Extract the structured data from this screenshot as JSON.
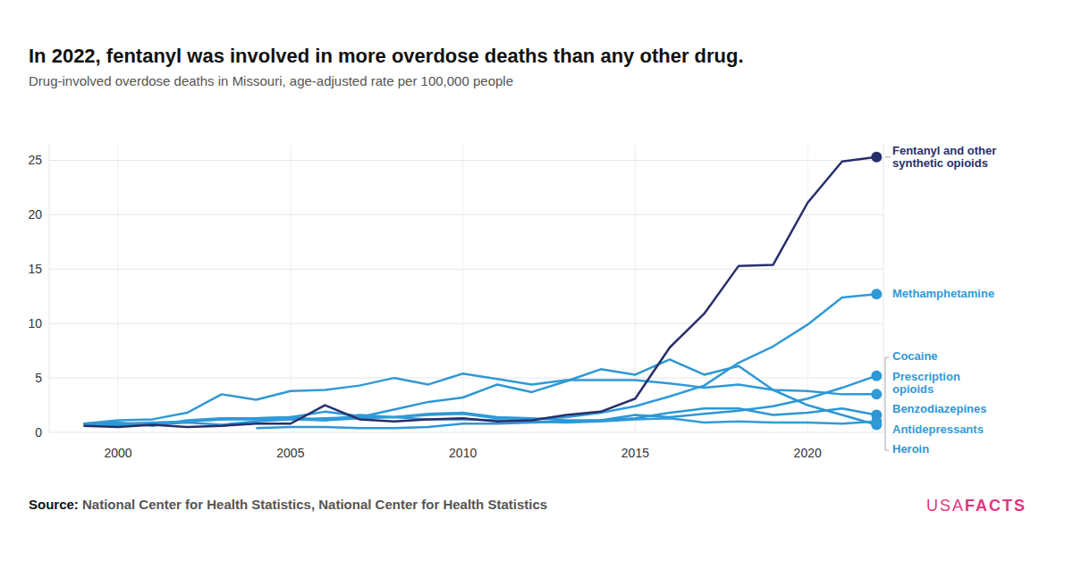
{
  "chart_data": {
    "type": "line",
    "title": "In 2022, fentanyl was involved in more overdose deaths than any other drug.",
    "subtitle": "Drug-involved overdose deaths in Missouri, age-adjusted rate per 100,000 people",
    "source_label": "Source:",
    "source": "National Center for Health Statistics, National Center for Health Statistics",
    "brand_prefix": "USA",
    "brand_suffix": "FACTS",
    "x": [
      1999,
      2000,
      2001,
      2002,
      2003,
      2004,
      2005,
      2006,
      2007,
      2008,
      2009,
      2010,
      2011,
      2012,
      2013,
      2014,
      2015,
      2016,
      2017,
      2018,
      2019,
      2020,
      2021,
      2022
    ],
    "xlim": [
      1998,
      2022.2
    ],
    "xticks": [
      2000,
      2005,
      2010,
      2015,
      2020
    ],
    "ylim": [
      0,
      26.6
    ],
    "yticks": [
      0,
      5,
      10,
      15,
      20,
      25
    ],
    "grid": true,
    "series": [
      {
        "name": "Fentanyl and other synthetic opioids",
        "color": "#272f6b",
        "marker": "end-dot",
        "values": [
          0.6,
          0.5,
          0.7,
          0.5,
          0.6,
          0.8,
          0.8,
          2.5,
          1.2,
          1.0,
          1.2,
          1.3,
          1.0,
          1.1,
          1.6,
          1.9,
          3.1,
          7.8,
          10.9,
          15.3,
          15.4,
          21.1,
          24.9,
          25.3
        ]
      },
      {
        "name": "Methamphetamine",
        "color": "#2f9ad8",
        "marker": "end-dot",
        "values": [
          0.6,
          0.7,
          0.8,
          1.0,
          1.2,
          1.3,
          1.4,
          1.1,
          1.3,
          1.4,
          1.6,
          1.7,
          1.3,
          1.2,
          1.4,
          1.8,
          2.4,
          3.3,
          4.3,
          6.4,
          7.9,
          9.9,
          12.4,
          12.7
        ]
      },
      {
        "name": "Cocaine",
        "color": "#2c98d6",
        "marker": "end-dot",
        "values": [
          0.8,
          0.9,
          0.6,
          1.1,
          1.3,
          1.3,
          1.4,
          1.9,
          1.5,
          1.4,
          1.7,
          1.8,
          1.4,
          1.3,
          1.1,
          1.1,
          1.6,
          1.4,
          1.7,
          2.0,
          2.4,
          3.1,
          4.1,
          5.2
        ]
      },
      {
        "name": "Prescription opioids",
        "color": "#3199d6",
        "marker": "end-dot",
        "values": [
          0.8,
          1.1,
          1.2,
          1.8,
          3.5,
          3.0,
          3.8,
          3.9,
          4.3,
          5.0,
          4.4,
          5.4,
          4.9,
          4.4,
          4.8,
          4.8,
          4.8,
          4.5,
          4.1,
          4.4,
          3.9,
          3.8,
          3.5,
          3.5
        ]
      },
      {
        "name": "Benzodiazepines",
        "color": "#2e96d4",
        "marker": "end-dot",
        "values": [
          null,
          null,
          null,
          null,
          null,
          0.4,
          0.5,
          0.5,
          0.4,
          0.4,
          0.5,
          0.8,
          0.8,
          0.9,
          1.0,
          1.1,
          1.3,
          1.8,
          2.2,
          2.2,
          1.6,
          1.8,
          2.2,
          1.6
        ]
      },
      {
        "name": "Antidepressants",
        "color": "#339bd8",
        "marker": "end-dot",
        "values": [
          0.8,
          0.8,
          0.9,
          1.0,
          1.2,
          1.2,
          1.2,
          1.1,
          1.6,
          1.4,
          1.2,
          1.2,
          1.1,
          1.0,
          0.9,
          1.0,
          1.2,
          1.3,
          0.9,
          1.0,
          0.9,
          0.9,
          0.8,
          1.0
        ]
      },
      {
        "name": "Heroin",
        "color": "#2d97d5",
        "marker": "end-dot",
        "values": [
          0.7,
          0.6,
          0.7,
          0.9,
          0.7,
          1.0,
          1.2,
          1.3,
          1.4,
          2.1,
          2.8,
          3.2,
          4.4,
          3.7,
          4.7,
          5.8,
          5.3,
          6.7,
          5.3,
          6.1,
          3.9,
          2.5,
          1.6,
          0.7
        ]
      }
    ]
  }
}
